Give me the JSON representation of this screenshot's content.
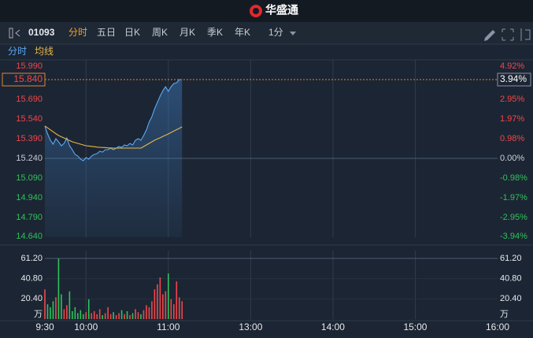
{
  "header": {
    "title": "华盛通"
  },
  "toolbar": {
    "code": "01093",
    "tabs": [
      "分时",
      "五日",
      "日K",
      "周K",
      "月K",
      "季K",
      "年K"
    ],
    "active_tab": 0,
    "interval": "1分"
  },
  "chart_data": [
    {
      "type": "line",
      "x": [
        0,
        2,
        4,
        6,
        8,
        10,
        12,
        14,
        16,
        18,
        20,
        22,
        24,
        26,
        28,
        30,
        32,
        34,
        36,
        38,
        40,
        42,
        44,
        46,
        48,
        50,
        52,
        54,
        56,
        58,
        60,
        62,
        64,
        66,
        68,
        70,
        72,
        74,
        76,
        78,
        80,
        82,
        84,
        86,
        88,
        90,
        92,
        94,
        96,
        98,
        100
      ],
      "xlim": [
        0,
        330
      ],
      "xticks": [
        {
          "value": 0,
          "label": "9:30"
        },
        {
          "value": 30,
          "label": "10:00"
        },
        {
          "value": 90,
          "label": "11:00"
        },
        {
          "value": 150,
          "label": "13:00"
        },
        {
          "value": 210,
          "label": "14:00"
        },
        {
          "value": 270,
          "label": "15:00"
        },
        {
          "value": 330,
          "label": "16:00"
        }
      ],
      "series": [
        {
          "name": "分时",
          "color": "#5aa9f5",
          "values": [
            15.486,
            15.426,
            15.378,
            15.348,
            15.39,
            15.366,
            15.336,
            15.354,
            15.396,
            15.336,
            15.306,
            15.27,
            15.258,
            15.234,
            15.222,
            15.246,
            15.234,
            15.258,
            15.27,
            15.276,
            15.294,
            15.288,
            15.306,
            15.306,
            15.318,
            15.306,
            15.318,
            15.33,
            15.324,
            15.342,
            15.336,
            15.354,
            15.342,
            15.378,
            15.39,
            15.378,
            15.414,
            15.456,
            15.516,
            15.558,
            15.618,
            15.666,
            15.714,
            15.756,
            15.786,
            15.75,
            15.786,
            15.81,
            15.816,
            15.84,
            15.84
          ]
        },
        {
          "name": "均线",
          "color": "#e8b84a",
          "values": [
            15.486,
            15.472,
            15.457,
            15.443,
            15.428,
            15.414,
            15.404,
            15.395,
            15.385,
            15.376,
            15.366,
            15.36,
            15.354,
            15.348,
            15.342,
            15.336,
            15.334,
            15.331,
            15.329,
            15.326,
            15.324,
            15.323,
            15.322,
            15.32,
            15.319,
            15.318,
            15.318,
            15.318,
            15.318,
            15.318,
            15.318,
            15.318,
            15.318,
            15.318,
            15.318,
            15.318,
            15.33,
            15.342,
            15.354,
            15.366,
            15.378,
            15.388,
            15.397,
            15.407,
            15.416,
            15.426,
            15.437,
            15.448,
            15.458,
            15.469,
            15.48
          ]
        }
      ],
      "ylim": [
        14.64,
        15.99
      ],
      "yticks": [
        {
          "value": 15.99,
          "label": "15.990"
        },
        {
          "value": 15.69,
          "label": "15.690"
        },
        {
          "value": 15.54,
          "label": "15.540"
        },
        {
          "value": 15.39,
          "label": "15.390"
        },
        {
          "value": 15.24,
          "label": "15.240"
        },
        {
          "value": 15.09,
          "label": "15.090"
        },
        {
          "value": 14.94,
          "label": "14.940"
        },
        {
          "value": 14.79,
          "label": "14.790"
        },
        {
          "value": 14.64,
          "label": "14.640"
        }
      ],
      "y2lim": [
        -3.937,
        4.921
      ],
      "y2ticks": [
        {
          "value": 4.92,
          "label": "4.92%"
        },
        {
          "value": 2.95,
          "label": "2.95%"
        },
        {
          "value": 1.97,
          "label": "1.97%"
        },
        {
          "value": 0.98,
          "label": "0.98%"
        },
        {
          "value": 0,
          "label": "0.00%"
        },
        {
          "value": -0.98,
          "label": "-0.98%"
        },
        {
          "value": -1.97,
          "label": "-1.97%"
        },
        {
          "value": -2.95,
          "label": "-2.95%"
        },
        {
          "value": -3.94,
          "label": "-3.94%"
        }
      ],
      "prev_close": 15.24,
      "last_price": {
        "value": 15.84,
        "label": "15.840"
      },
      "last_change": {
        "value": 3.94,
        "label": "3.94%"
      },
      "up_color": "#f0474a",
      "down_color": "#2fc25b",
      "flat_color": "#c8ced8"
    },
    {
      "type": "bar",
      "x": [
        0,
        2,
        4,
        6,
        8,
        10,
        12,
        14,
        16,
        18,
        20,
        22,
        24,
        26,
        28,
        30,
        32,
        34,
        36,
        38,
        40,
        42,
        44,
        46,
        48,
        50,
        52,
        54,
        56,
        58,
        60,
        62,
        64,
        66,
        68,
        70,
        72,
        74,
        76,
        78,
        80,
        82,
        84,
        86,
        88,
        90,
        92,
        94,
        96,
        98,
        100
      ],
      "xlim": [
        0,
        330
      ],
      "values": [
        30,
        15,
        12,
        18,
        22,
        61,
        25,
        10,
        14,
        28,
        8,
        12,
        6,
        9,
        5,
        7,
        20,
        6,
        8,
        5,
        10,
        4,
        6,
        12,
        5,
        7,
        4,
        6,
        9,
        5,
        8,
        4,
        6,
        10,
        7,
        5,
        9,
        14,
        12,
        18,
        30,
        35,
        42,
        25,
        28,
        46,
        20,
        15,
        38,
        22,
        18
      ],
      "ylim": [
        0,
        61.2
      ],
      "yticks": [
        {
          "value": 61.2,
          "label": "61.20"
        },
        {
          "value": 40.8,
          "label": "40.80"
        },
        {
          "value": 20.4,
          "label": "20.40"
        }
      ],
      "unit": "万",
      "up_color": "#f0474a",
      "down_color": "#2fc25b"
    }
  ]
}
